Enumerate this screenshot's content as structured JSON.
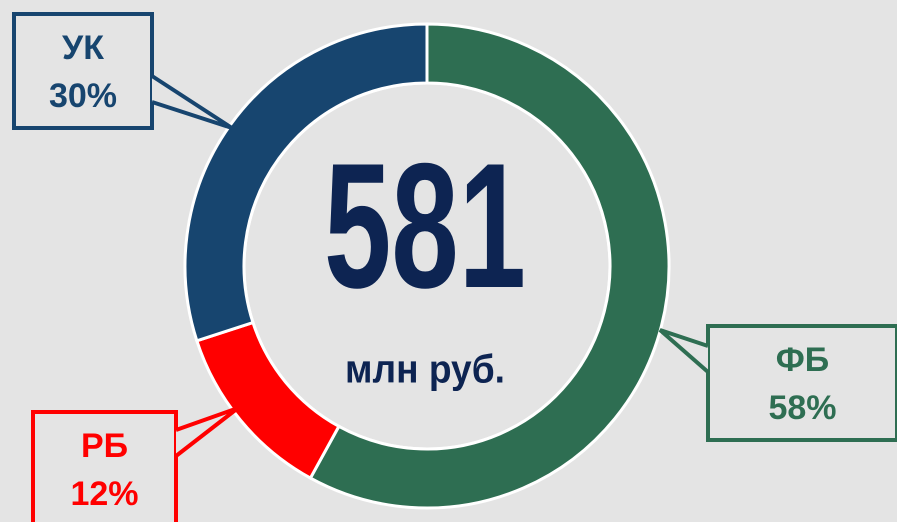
{
  "chart_data": {
    "type": "donut",
    "categories": [
      "ФБ",
      "РБ",
      "УК"
    ],
    "values": [
      58,
      12,
      30
    ],
    "value_labels": [
      "58%",
      "12%",
      "30%"
    ],
    "colors": [
      "#2e6e52",
      "#ff0000",
      "#17456f"
    ],
    "total": 581,
    "total_unit": "млн руб."
  }
}
